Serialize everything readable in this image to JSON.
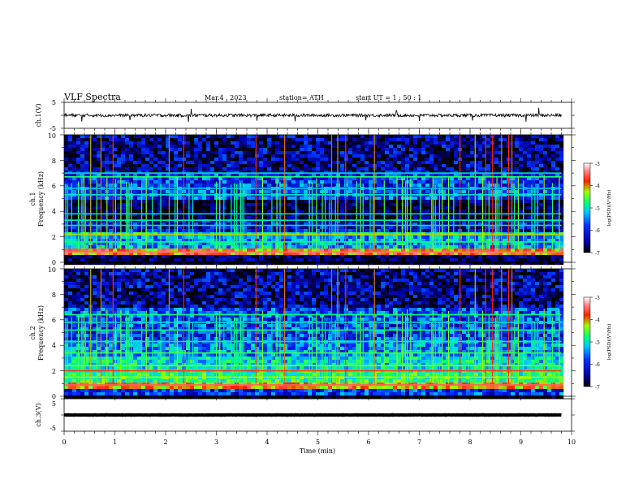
{
  "header": {
    "title": "VLF  Spectra",
    "date": "Mar.4  , 2023",
    "station": "station= ATH",
    "start": "start  UT  =   1  : 50 : 1"
  },
  "chart_data": {
    "type": "heatmap",
    "xlabel": "Time  (min)",
    "xlim": [
      0,
      10
    ],
    "x_ticks": [
      "0",
      "1",
      "2",
      "3",
      "4",
      "5",
      "6",
      "7",
      "8",
      "9",
      "10"
    ],
    "data_end_min": 9.8,
    "panels": [
      {
        "kind": "waveform",
        "ylabel": "ch.1(V)",
        "ylim": [
          -5,
          5
        ],
        "y_ticks": [
          "5",
          "-5"
        ],
        "baseline_v": 0.0,
        "noise_amplitude_v": 0.6,
        "spikes": [
          {
            "t": 0.35,
            "v": -2.4
          },
          {
            "t": 1.3,
            "v": -1.8
          },
          {
            "t": 2.45,
            "v": -2.6
          },
          {
            "t": 2.5,
            "v": 2.5
          },
          {
            "t": 3.8,
            "v": -2.1
          },
          {
            "t": 4.55,
            "v": -2.3
          },
          {
            "t": 5.95,
            "v": -1.9
          },
          {
            "t": 6.55,
            "v": 1.8
          },
          {
            "t": 7.0,
            "v": -2.2
          },
          {
            "t": 8.05,
            "v": -2.0
          },
          {
            "t": 9.1,
            "v": -2.5
          },
          {
            "t": 9.35,
            "v": 2.9
          }
        ]
      },
      {
        "kind": "spectrogram",
        "ylabel_lines": [
          "ch.1",
          "Frequency  (kHz)"
        ],
        "ylim_khz": [
          0,
          10
        ],
        "y_ticks": [
          "0",
          "2",
          "4",
          "6",
          "8",
          "10"
        ],
        "colorbar": {
          "label": "log(PSD)(V²/Hz)",
          "range": [
            -7,
            -3
          ],
          "ticks": [
            "-3",
            "-4",
            "-5",
            "-6",
            "-7"
          ]
        },
        "background_by_freq": [
          {
            "f": [
              0.0,
              0.6
            ],
            "level": -6.8
          },
          {
            "f": [
              0.6,
              1.0
            ],
            "level": -4.1
          },
          {
            "f": [
              1.0,
              2.0
            ],
            "level": -5.6
          },
          {
            "f": [
              2.0,
              2.4
            ],
            "level": -5.2
          },
          {
            "f": [
              2.4,
              3.3
            ],
            "level": -6.3
          },
          {
            "f": [
              3.3,
              3.5
            ],
            "level": -5.8
          },
          {
            "f": [
              3.5,
              5.0
            ],
            "level": -6.8
          },
          {
            "f": [
              5.0,
              7.0
            ],
            "level": -6.0
          },
          {
            "f": [
              7.0,
              10.0
            ],
            "level": -6.4
          }
        ],
        "lines": [
          {
            "f": 0.8,
            "level": -3.6
          },
          {
            "f": 1.6,
            "level": -5.0
          },
          {
            "f": 2.2,
            "level": -4.4
          },
          {
            "f": 2.9,
            "level": -5.3
          },
          {
            "f": 3.3,
            "level": -5.2
          },
          {
            "f": 3.8,
            "level": -5.4
          },
          {
            "f": 5.3,
            "level": -5.3
          },
          {
            "f": 5.8,
            "level": -5.5
          },
          {
            "f": 6.7,
            "level": -4.9
          },
          {
            "f": 7.0,
            "level": -5.3
          }
        ]
      },
      {
        "kind": "spectrogram",
        "ylabel_lines": [
          "ch.2",
          "Frequency  (kHz)"
        ],
        "ylim_khz": [
          0,
          10
        ],
        "y_ticks": [
          "0",
          "2",
          "4",
          "6",
          "8",
          "10"
        ],
        "colorbar": {
          "label": "log(PSD)(V²/Hz)",
          "range": [
            -7,
            -3
          ],
          "ticks": [
            "-3",
            "-4",
            "-5",
            "-6",
            "-7"
          ]
        },
        "background_by_freq": [
          {
            "f": [
              0.0,
              0.5
            ],
            "level": -6.0
          },
          {
            "f": [
              0.5,
              1.0
            ],
            "level": -4.2
          },
          {
            "f": [
              1.0,
              2.0
            ],
            "level": -5.0
          },
          {
            "f": [
              2.0,
              3.0
            ],
            "level": -5.3
          },
          {
            "f": [
              3.0,
              4.5
            ],
            "level": -5.7
          },
          {
            "f": [
              4.5,
              7.0
            ],
            "level": -6.0
          },
          {
            "f": [
              7.0,
              10.0
            ],
            "level": -6.4
          }
        ],
        "lines": [
          {
            "f": 0.9,
            "level": -3.7
          },
          {
            "f": 1.5,
            "level": -4.5
          },
          {
            "f": 2.0,
            "level": -3.9
          },
          {
            "f": 2.4,
            "level": -4.6
          },
          {
            "f": 3.4,
            "level": -4.8
          },
          {
            "f": 4.3,
            "level": -5.1
          },
          {
            "f": 5.2,
            "level": -5.0
          },
          {
            "f": 5.8,
            "level": -5.3
          },
          {
            "f": 6.4,
            "level": -5.0
          }
        ]
      },
      {
        "kind": "waveform",
        "ylabel": "ch.3(V)",
        "ylim": [
          -5,
          5
        ],
        "y_ticks": [
          "5",
          "-5"
        ],
        "baseline_v": 0.0,
        "noise_amplitude_v": 0.05,
        "line_weight": "bold",
        "spikes": []
      }
    ]
  },
  "colors": {
    "colormap": [
      "#000000",
      "#0000a0",
      "#0030ff",
      "#00c8ff",
      "#00ff80",
      "#a0ff00",
      "#ff2000",
      "#ff9090",
      "#ffffff"
    ],
    "frame": "#000000",
    "background": "#ffffff"
  }
}
